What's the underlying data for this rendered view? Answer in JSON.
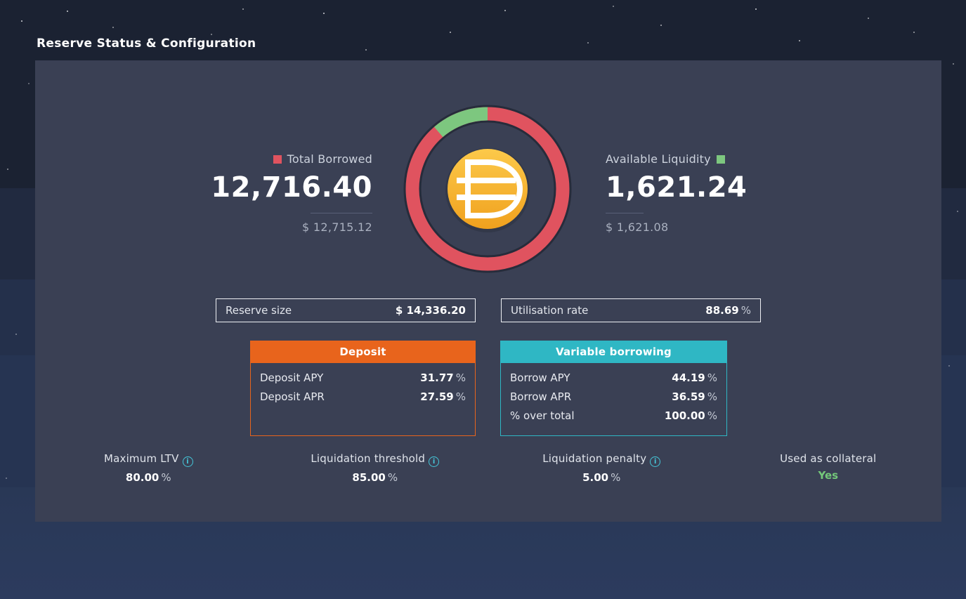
{
  "page": {
    "title": "Reserve Status & Configuration"
  },
  "colors": {
    "panel": "#3a4054",
    "accent-red": "#e0535f",
    "accent-green": "#7dc77f",
    "accent-orange": "#e8641c",
    "accent-teal": "#2fb7c4",
    "info": "#45c6d8",
    "yes-green": "#74c97a",
    "coin-top": "#fcc94a",
    "coin-bottom": "#f0a11e"
  },
  "donut": {
    "utilisation_pct": 88.69,
    "total_borrowed": {
      "label": "Total Borrowed",
      "value": "12,716.40",
      "usd": "$ 12,715.12"
    },
    "available_liquidity": {
      "label": "Available Liquidity",
      "value": "1,621.24",
      "usd": "$ 1,621.08"
    }
  },
  "summary": {
    "reserve_size": {
      "label": "Reserve size",
      "value": "$ 14,336.20"
    },
    "utilisation_rate": {
      "label": "Utilisation rate",
      "value": "88.69",
      "unit": "%"
    }
  },
  "deposit_table": {
    "title": "Deposit",
    "rows": [
      {
        "label": "Deposit APY",
        "value": "31.77",
        "unit": "%"
      },
      {
        "label": "Deposit APR",
        "value": "27.59",
        "unit": "%"
      }
    ]
  },
  "borrow_table": {
    "title": "Variable borrowing",
    "rows": [
      {
        "label": "Borrow APY",
        "value": "44.19",
        "unit": "%"
      },
      {
        "label": "Borrow APR",
        "value": "36.59",
        "unit": "%"
      },
      {
        "label": "% over total",
        "value": "100.00",
        "unit": "%"
      }
    ]
  },
  "config": [
    {
      "label": "Maximum LTV",
      "value": "80.00",
      "unit": "%"
    },
    {
      "label": "Liquidation threshold",
      "value": "85.00",
      "unit": "%"
    },
    {
      "label": "Liquidation penalty",
      "value": "5.00",
      "unit": "%"
    },
    {
      "label": "Used as collateral",
      "value": "Yes",
      "unit": ""
    }
  ]
}
